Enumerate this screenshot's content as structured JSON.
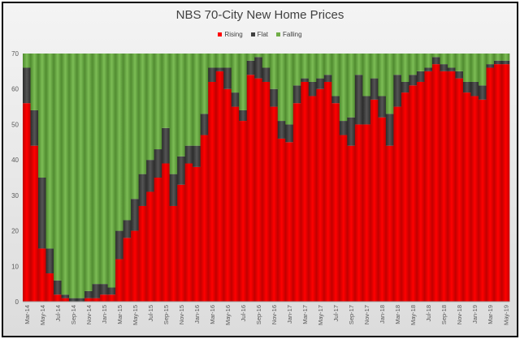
{
  "chart_data": {
    "type": "bar",
    "stacked": true,
    "title": "NBS 70-City New Home Prices",
    "xlabel": "",
    "ylabel": "",
    "ylim": [
      0,
      70
    ],
    "yticks": [
      0,
      10,
      20,
      30,
      40,
      50,
      60,
      70
    ],
    "grid": false,
    "legend_position": "top",
    "categories": [
      "Mar-14",
      "Apr-14",
      "May-14",
      "Jun-14",
      "Jul-14",
      "Aug-14",
      "Sep-14",
      "Oct-14",
      "Nov-14",
      "Dec-14",
      "Jan-15",
      "Feb-15",
      "Mar-15",
      "Apr-15",
      "May-15",
      "Jun-15",
      "Jul-15",
      "Aug-15",
      "Sep-15",
      "Oct-15",
      "Nov-15",
      "Dec-15",
      "Jan-16",
      "Feb-16",
      "Mar-16",
      "Apr-16",
      "May-16",
      "Jun-16",
      "Jul-16",
      "Aug-16",
      "Sep-16",
      "Oct-16",
      "Nov-16",
      "Dec-16",
      "Jan-17",
      "Feb-17",
      "Mar-17",
      "Apr-17",
      "May-17",
      "Jun-17",
      "Jul-17",
      "Aug-17",
      "Sep-17",
      "Oct-17",
      "Nov-17",
      "Dec-17",
      "Jan-18",
      "Feb-18",
      "Mar-18",
      "Apr-18",
      "May-18",
      "Jun-18",
      "Jul-18",
      "Aug-18",
      "Sep-18",
      "Oct-18",
      "Nov-18",
      "Dec-18",
      "Jan-19",
      "Feb-19",
      "Mar-19",
      "Apr-19",
      "May-19"
    ],
    "x_tick_labels": [
      "Mar-14",
      "May-14",
      "Jul-14",
      "Sep-14",
      "Nov-14",
      "Jan-15",
      "Mar-15",
      "May-15",
      "Jul-15",
      "Sep-15",
      "Nov-15",
      "Jan-16",
      "Mar-16",
      "May-16",
      "Jul-16",
      "Sep-16",
      "Nov-16",
      "Jan-17",
      "Mar-17",
      "May-17",
      "Jul-17",
      "Sep-17",
      "Nov-17",
      "Jan-18",
      "Mar-18",
      "May-18",
      "Jul-18",
      "Sep-18",
      "Nov-18",
      "Jan-19",
      "Mar-19",
      "May-19"
    ],
    "series": [
      {
        "name": "Rising",
        "color": "#ff0000",
        "values": [
          56,
          44,
          15,
          8,
          2,
          1,
          0,
          0,
          1,
          1,
          2,
          2,
          12,
          18,
          20,
          27,
          31,
          35,
          39,
          27,
          33,
          39,
          38,
          47,
          62,
          65,
          60,
          55,
          51,
          64,
          63,
          62,
          55,
          46,
          45,
          56,
          62,
          58,
          60,
          62,
          56,
          47,
          44,
          50,
          50,
          57,
          52,
          44,
          55,
          59,
          61,
          62,
          65,
          67,
          65,
          65,
          63,
          59,
          58,
          57,
          66,
          67,
          67
        ]
      },
      {
        "name": "Flat",
        "color": "#404040",
        "values": [
          10,
          10,
          20,
          7,
          4,
          1,
          1,
          1,
          2,
          4,
          3,
          2,
          8,
          5,
          9,
          9,
          9,
          8,
          10,
          9,
          8,
          5,
          6,
          6,
          4,
          1,
          6,
          4,
          3,
          4,
          6,
          4,
          5,
          5,
          5,
          5,
          1,
          4,
          3,
          2,
          2,
          4,
          8,
          14,
          8,
          6,
          6,
          9,
          9,
          3,
          3,
          3,
          1,
          2,
          2,
          1,
          2,
          3,
          4,
          4,
          1,
          1,
          1
        ]
      },
      {
        "name": "Falling",
        "color": "#70ad47",
        "values": [
          4,
          16,
          35,
          55,
          64,
          68,
          69,
          69,
          67,
          65,
          65,
          66,
          50,
          47,
          41,
          34,
          30,
          27,
          21,
          34,
          29,
          26,
          26,
          17,
          4,
          4,
          4,
          11,
          16,
          2,
          1,
          4,
          10,
          19,
          20,
          9,
          7,
          8,
          7,
          6,
          12,
          19,
          18,
          6,
          12,
          7,
          12,
          17,
          6,
          8,
          6,
          5,
          4,
          1,
          3,
          4,
          5,
          8,
          8,
          9,
          3,
          2,
          2
        ]
      }
    ]
  }
}
